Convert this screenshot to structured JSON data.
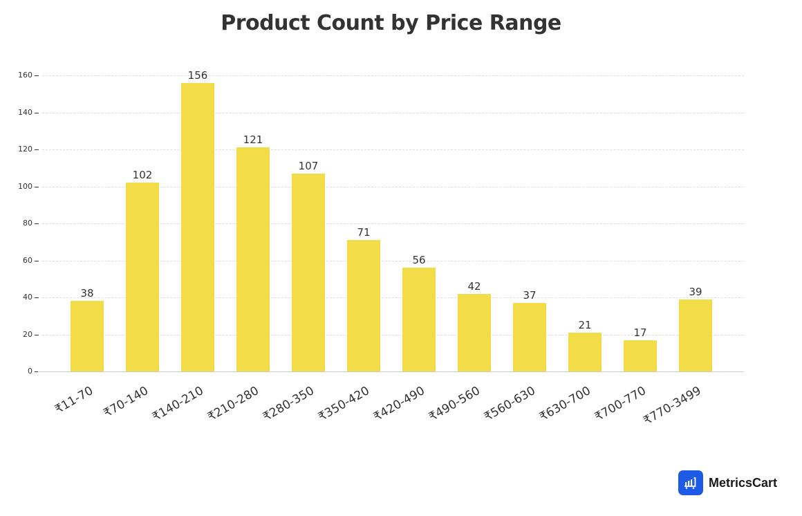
{
  "chart_data": {
    "type": "bar",
    "title": "Product Count by Price Range",
    "xlabel": "",
    "ylabel": "",
    "categories": [
      "₹11-70",
      "₹70-140",
      "₹140-210",
      "₹210-280",
      "₹280-350",
      "₹350-420",
      "₹420-490",
      "₹490-560",
      "₹560-630",
      "₹630-700",
      "₹700-770",
      "₹770-3499"
    ],
    "values": [
      38,
      102,
      156,
      121,
      107,
      71,
      56,
      42,
      37,
      21,
      17,
      39
    ],
    "ylim": [
      0,
      160
    ],
    "yticks": [
      0,
      20,
      40,
      60,
      80,
      100,
      120,
      140,
      160
    ],
    "grid": true,
    "bar_color": "#f2dd49",
    "data_labels": true
  },
  "header": {
    "title": "Product Count by Price Range"
  },
  "brand": {
    "name": "MetricsCart",
    "icon": "bar-chart-cart-icon",
    "color": "#1f5ae6"
  }
}
